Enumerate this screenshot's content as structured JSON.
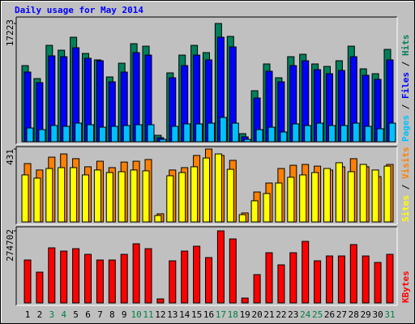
{
  "chart_data": [
    {
      "type": "bar",
      "title": "Daily usage for May 2014",
      "ylim": [
        0,
        17223
      ],
      "yticks": [
        17223
      ],
      "legend_separator": " / ",
      "series": [
        {
          "name": "Pages",
          "color": "#00c0ff",
          "values": [
            2000,
            1770,
            2360,
            2240,
            2710,
            2480,
            2120,
            2240,
            2360,
            2480,
            2480,
            350,
            2240,
            2600,
            2600,
            2710,
            3540,
            2710,
            350,
            1770,
            2120,
            1420,
            2600,
            2360,
            2710,
            2360,
            2360,
            2710,
            2240,
            1890,
            2710
          ]
        },
        {
          "name": "Files",
          "color": "#0000ff",
          "values": [
            10150,
            8610,
            12510,
            12390,
            13690,
            12150,
            11800,
            8730,
            10150,
            12980,
            12620,
            590,
            9320,
            11090,
            12620,
            11920,
            15220,
            13810,
            710,
            6370,
            10270,
            8730,
            11090,
            11800,
            10500,
            9910,
            10380,
            12390,
            9680,
            9090,
            11920
          ]
        },
        {
          "name": "Hits",
          "color": "#00805c",
          "values": [
            11090,
            9200,
            14040,
            13330,
            15220,
            12860,
            11920,
            9440,
            11440,
            14280,
            13920,
            940,
            10030,
            12620,
            14040,
            12980,
            17223,
            15340,
            1180,
            7430,
            11330,
            9320,
            12390,
            12740,
            11330,
            10970,
            11800,
            13920,
            10620,
            9910,
            13450
          ]
        }
      ]
    },
    {
      "type": "bar",
      "ylim": [
        0,
        431
      ],
      "yticks": [
        431
      ],
      "series": [
        {
          "name": "Sites",
          "color": "#ffff00",
          "values": [
            278,
            259,
            316,
            321,
            321,
            278,
            307,
            292,
            297,
            307,
            302,
            38,
            273,
            292,
            326,
            378,
            402,
            311,
            43,
            125,
            168,
            230,
            264,
            278,
            292,
            316,
            350,
            297,
            340,
            307,
            330
          ]
        },
        {
          "name": "Visits",
          "color": "#ff8000",
          "values": [
            345,
            307,
            383,
            402,
            374,
            326,
            359,
            321,
            354,
            359,
            369,
            48,
            307,
            321,
            393,
            431,
            393,
            364,
            53,
            177,
            230,
            316,
            335,
            340,
            330,
            307,
            326,
            374,
            326,
            268,
            340
          ]
        }
      ]
    },
    {
      "type": "bar",
      "ylim": [
        0,
        274702
      ],
      "yticks": [
        274702
      ],
      "categories": [
        "1",
        "2",
        "3",
        "4",
        "5",
        "6",
        "7",
        "8",
        "9",
        "10",
        "11",
        "12",
        "13",
        "14",
        "15",
        "16",
        "17",
        "18",
        "19",
        "20",
        "21",
        "22",
        "23",
        "24",
        "25",
        "26",
        "27",
        "28",
        "29",
        "30",
        "31"
      ],
      "category_colors": [
        "#000000",
        "#000000",
        "#008040",
        "#008040",
        "#000000",
        "#000000",
        "#000000",
        "#000000",
        "#000000",
        "#008040",
        "#008040",
        "#000000",
        "#000000",
        "#000000",
        "#000000",
        "#000000",
        "#008040",
        "#008040",
        "#000000",
        "#000000",
        "#000000",
        "#000000",
        "#000000",
        "#008040",
        "#008040",
        "#000000",
        "#000000",
        "#000000",
        "#000000",
        "#000000",
        "#008040"
      ],
      "series": [
        {
          "name": "KBytes",
          "color": "#ff0000",
          "values": [
            163600,
            117300,
            209900,
            197600,
            206800,
            185200,
            163600,
            163600,
            185200,
            225400,
            206800,
            15400,
            160500,
            197600,
            216100,
            172900,
            274702,
            243900,
            18500,
            108000,
            191400,
            145100,
            191400,
            234600,
            160500,
            179000,
            179000,
            222300,
            179000,
            154300,
            185200
          ]
        }
      ]
    }
  ]
}
